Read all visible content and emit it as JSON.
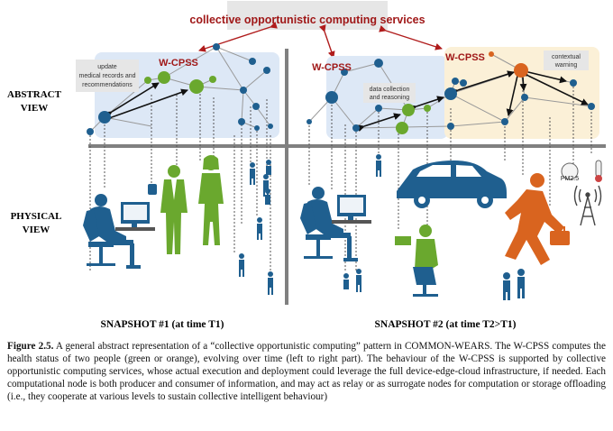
{
  "header_label": "collective opportunistic computing services",
  "row_labels": {
    "abstract_line1": "ABSTRACT",
    "abstract_line2": "VIEW",
    "physical_line1": "PHYSICAL",
    "physical_line2": "VIEW"
  },
  "left_panel": {
    "title": "W-CPSS",
    "annotation_line1": "update",
    "annotation_line2": "medical records and",
    "annotation_line3": "recommendations"
  },
  "right_panel": {
    "title_blue": "W-CPSS",
    "title_orange": "W-CPSS",
    "annotation_data_line1": "data collection",
    "annotation_data_line2": "and reasoning",
    "annotation_warn_line1": "contextual",
    "annotation_warn_line2": "warning"
  },
  "sensor_label": "PM2.5",
  "snapshots": {
    "left": "SNAPSHOT #1 (at time T1)",
    "right": "SNAPSHOT #2 (at time T2>T1)"
  },
  "caption": {
    "label": "Figure 2.5.",
    "text": " A general abstract representation of a “collective opportunistic computing” pattern in COMMON-WEARS. The W-CPSS computes the health status of two people (green or orange), evolving over time (left to right part). The behaviour of the W-CPSS is supported by collective opportunistic computing services, whose actual execution and deployment could leverage the full device-edge-cloud infrastructure, if needed. Each computational node is both producer and consumer of information, and may act as relay or as surrogate nodes for computation or storage offloading (i.e., they cooperate at various levels to sustain collective intelligent behaviour)"
  },
  "colors": {
    "blue_node": "#1f5f8f",
    "green": "#6aa82e",
    "orange": "#d9641f",
    "panel_blue": "#dde8f6",
    "panel_orange": "#fbf0d7",
    "header_bg": "#e6e6e6",
    "header_text": "#a01818",
    "divider": "#808080"
  }
}
